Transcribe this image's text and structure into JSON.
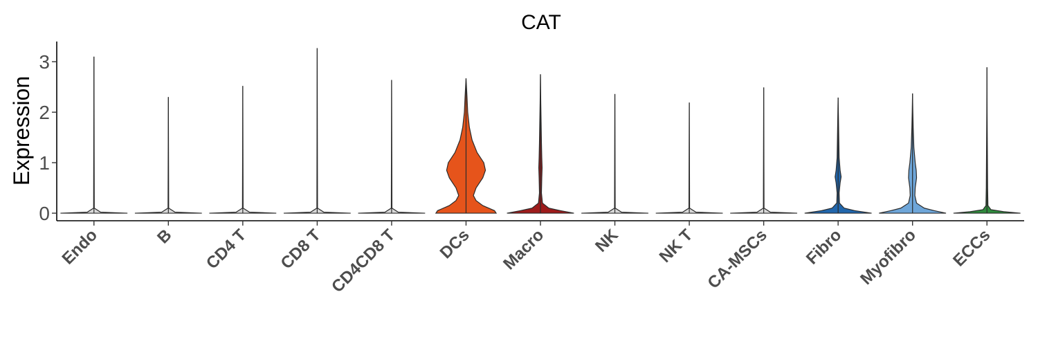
{
  "chart_data": {
    "type": "violin",
    "title": "CAT",
    "ylabel": "Expression",
    "xlabel": "",
    "ylim": [
      -0.15,
      3.4
    ],
    "yticks": [
      0,
      1,
      2,
      3
    ],
    "legend": "none",
    "grid": false,
    "categories": [
      "Endo",
      "B",
      "CD4 T",
      "CD8 T",
      "CD4CD8 T",
      "DCs",
      "Macro",
      "NK",
      "NK T",
      "CA-MSCs",
      "Fibro",
      "Myofibro",
      "ECCs"
    ],
    "max_values": [
      3.1,
      2.3,
      2.52,
      3.27,
      2.64,
      2.67,
      2.75,
      2.36,
      2.19,
      2.49,
      2.29,
      2.37,
      2.89
    ],
    "colors": [
      "#d9d9d9",
      "#d9d9d9",
      "#d9d9d9",
      "#d9d9d9",
      "#d9d9d9",
      "#e6541b",
      "#9e1b1b",
      "#d9d9d9",
      "#d9d9d9",
      "#d9d9d9",
      "#2166ac",
      "#6ea6d9",
      "#2f8a3d"
    ],
    "densities": [
      [
        [
          0,
          1.0
        ],
        [
          0.02,
          0.2
        ],
        [
          0.1,
          0.01
        ],
        [
          3.1,
          0.0
        ]
      ],
      [
        [
          0,
          1.0
        ],
        [
          0.02,
          0.2
        ],
        [
          0.1,
          0.01
        ],
        [
          2.3,
          0.0
        ]
      ],
      [
        [
          0,
          1.0
        ],
        [
          0.02,
          0.2
        ],
        [
          0.1,
          0.01
        ],
        [
          2.52,
          0.0
        ]
      ],
      [
        [
          0,
          1.0
        ],
        [
          0.02,
          0.2
        ],
        [
          0.1,
          0.01
        ],
        [
          3.27,
          0.0
        ]
      ],
      [
        [
          0,
          1.0
        ],
        [
          0.02,
          0.2
        ],
        [
          0.1,
          0.01
        ],
        [
          2.64,
          0.0
        ]
      ],
      [
        [
          0,
          0.9
        ],
        [
          0.05,
          0.85
        ],
        [
          0.15,
          0.5
        ],
        [
          0.25,
          0.3
        ],
        [
          0.35,
          0.22
        ],
        [
          0.5,
          0.3
        ],
        [
          0.7,
          0.5
        ],
        [
          0.85,
          0.58
        ],
        [
          1.0,
          0.53
        ],
        [
          1.2,
          0.33
        ],
        [
          1.45,
          0.18
        ],
        [
          1.7,
          0.1
        ],
        [
          2.0,
          0.05
        ],
        [
          2.3,
          0.03
        ],
        [
          2.67,
          0.0
        ]
      ],
      [
        [
          0,
          1.0
        ],
        [
          0.05,
          0.6
        ],
        [
          0.1,
          0.25
        ],
        [
          0.2,
          0.06
        ],
        [
          0.4,
          0.03
        ],
        [
          0.7,
          0.04
        ],
        [
          0.9,
          0.05
        ],
        [
          1.1,
          0.04
        ],
        [
          1.4,
          0.03
        ],
        [
          1.8,
          0.02
        ],
        [
          2.2,
          0.01
        ],
        [
          2.75,
          0.0
        ]
      ],
      [
        [
          0,
          1.0
        ],
        [
          0.02,
          0.2
        ],
        [
          0.1,
          0.01
        ],
        [
          2.36,
          0.0
        ]
      ],
      [
        [
          0,
          1.0
        ],
        [
          0.02,
          0.2
        ],
        [
          0.1,
          0.01
        ],
        [
          2.19,
          0.0
        ]
      ],
      [
        [
          0,
          1.0
        ],
        [
          0.02,
          0.2
        ],
        [
          0.1,
          0.01
        ],
        [
          2.49,
          0.0
        ]
      ],
      [
        [
          0,
          1.0
        ],
        [
          0.05,
          0.5
        ],
        [
          0.1,
          0.18
        ],
        [
          0.2,
          0.04
        ],
        [
          0.4,
          0.03
        ],
        [
          0.6,
          0.06
        ],
        [
          0.72,
          0.09
        ],
        [
          0.85,
          0.06
        ],
        [
          1.1,
          0.03
        ],
        [
          1.5,
          0.02
        ],
        [
          1.9,
          0.01
        ],
        [
          2.29,
          0.0
        ]
      ],
      [
        [
          0,
          1.0
        ],
        [
          0.05,
          0.65
        ],
        [
          0.1,
          0.35
        ],
        [
          0.2,
          0.12
        ],
        [
          0.35,
          0.07
        ],
        [
          0.5,
          0.08
        ],
        [
          0.7,
          0.12
        ],
        [
          0.85,
          0.11
        ],
        [
          1.0,
          0.08
        ],
        [
          1.3,
          0.04
        ],
        [
          1.7,
          0.02
        ],
        [
          2.0,
          0.01
        ],
        [
          2.37,
          0.0
        ]
      ],
      [
        [
          0,
          1.0
        ],
        [
          0.03,
          0.5
        ],
        [
          0.07,
          0.12
        ],
        [
          0.15,
          0.03
        ],
        [
          0.5,
          0.02
        ],
        [
          1.0,
          0.015
        ],
        [
          1.5,
          0.01
        ],
        [
          2.0,
          0.005
        ],
        [
          2.89,
          0.0
        ]
      ]
    ]
  }
}
